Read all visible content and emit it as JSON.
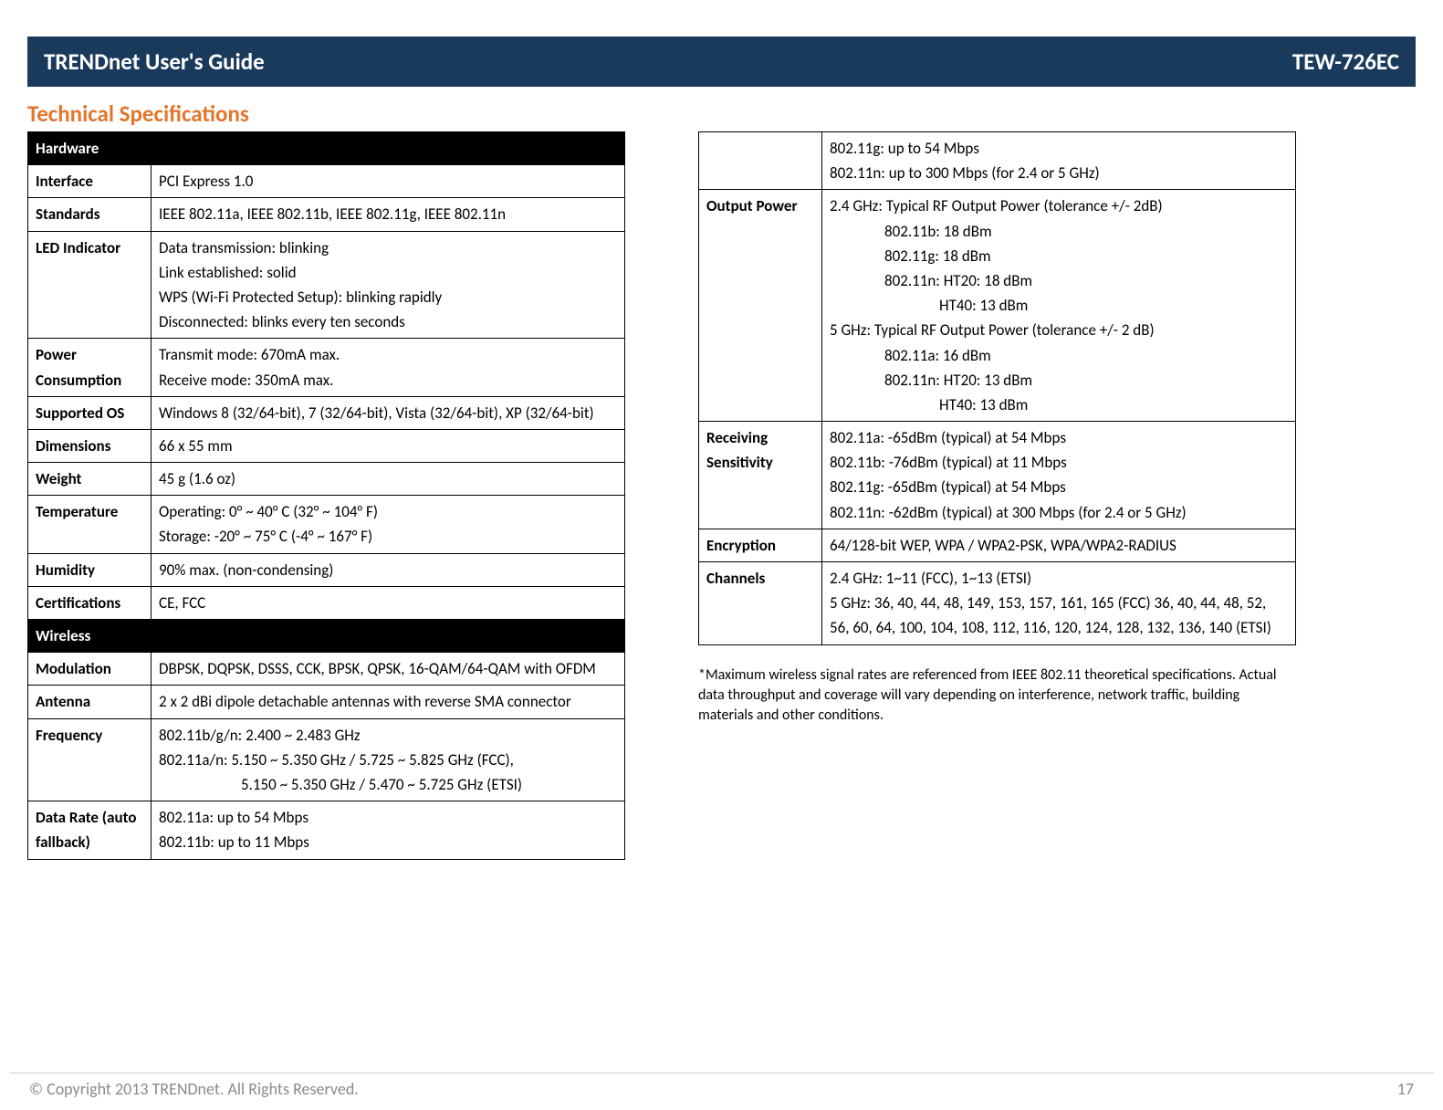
{
  "header": {
    "left": "TRENDnet User's Guide",
    "right": "TEW-726EC"
  },
  "section_title": "Technical Specifications",
  "table_left": {
    "sections": {
      "hardware": "Hardware",
      "wireless": "Wireless"
    },
    "rows": {
      "interface": {
        "label": "Interface",
        "value": "PCI Express 1.0"
      },
      "standards": {
        "label": "Standards",
        "value": "IEEE 802.11a, IEEE 802.11b, IEEE 802.11g, IEEE 802.11n"
      },
      "led": {
        "label": "LED Indicator",
        "lines": {
          "l1": "Data transmission: blinking",
          "l2": "Link established: solid",
          "l3": "WPS (Wi-Fi Protected Setup): blinking rapidly",
          "l4": "Disconnected: blinks every ten seconds"
        }
      },
      "power": {
        "label": "Power Consumption",
        "lines": {
          "l1": "Transmit mode: 670mA max.",
          "l2": "Receive mode: 350mA max."
        }
      },
      "os": {
        "label": "Supported OS",
        "value": "Windows 8 (32/64-bit), 7 (32/64-bit), Vista (32/64-bit), XP (32/64-bit)"
      },
      "dimensions": {
        "label": "Dimensions",
        "value": "66 x 55 mm"
      },
      "weight": {
        "label": "Weight",
        "value": "45 g (1.6 oz)"
      },
      "temperature": {
        "label": "Temperature",
        "lines": {
          "l1": "Operating: 0° ~ 40° C (32° ~ 104° F)",
          "l2": "Storage: -20° ~ 75° C (-4° ~ 167° F)"
        }
      },
      "humidity": {
        "label": "Humidity",
        "value": "90% max. (non-condensing)"
      },
      "certs": {
        "label": "Certifications",
        "value": "CE, FCC"
      },
      "modulation": {
        "label": "Modulation",
        "value": "DBPSK, DQPSK, DSSS, CCK, BPSK, QPSK, 16-QAM/64-QAM with OFDM"
      },
      "antenna": {
        "label": "Antenna",
        "value": "2 x 2 dBi dipole detachable antennas with reverse SMA connector"
      },
      "frequency": {
        "label": "Frequency",
        "lines": {
          "l1": "802.11b/g/n: 2.400 ~ 2.483 GHz",
          "l2": "802.11a/n: 5.150 ~ 5.350 GHz / 5.725 ~ 5.825 GHz (FCC),",
          "l3": "5.150 ~ 5.350 GHz / 5.470 ~ 5.725 GHz (ETSI)"
        }
      },
      "datarate": {
        "label": "Data Rate (auto fallback)",
        "lines": {
          "l1": "802.11a: up to 54 Mbps",
          "l2": "802.11b: up to 11 Mbps"
        }
      }
    }
  },
  "table_right": {
    "rows": {
      "datarate_cont": {
        "lines": {
          "l1": "802.11g: up to 54 Mbps",
          "l2": "802.11n: up to 300 Mbps (for 2.4 or 5 GHz)"
        }
      },
      "output": {
        "label": "Output Power",
        "lines": {
          "l1": "2.4 GHz: Typical RF Output Power (tolerance +/-  2dB)",
          "l2": "802.11b: 18 dBm",
          "l3": "802.11g: 18 dBm",
          "l4": "802.11n: HT20: 18 dBm",
          "l5": "HT40: 13 dBm",
          "l6": "5 GHz: Typical RF Output Power (tolerance +/- 2 dB)",
          "l7": "802.11a: 16 dBm",
          "l8": "802.11n: HT20: 13 dBm",
          "l9": "HT40: 13 dBm"
        }
      },
      "sensitivity": {
        "label": "Receiving Sensitivity",
        "lines": {
          "l1": "802.11a: -65dBm (typical) at 54 Mbps",
          "l2": "802.11b: -76dBm (typical) at 11 Mbps",
          "l3": "802.11g: -65dBm (typical) at 54 Mbps",
          "l4": "802.11n: -62dBm (typical) at 300 Mbps (for 2.4 or 5 GHz)"
        }
      },
      "encryption": {
        "label": "Encryption",
        "value": "64/128-bit WEP, WPA / WPA2-PSK, WPA/WPA2-RADIUS"
      },
      "channels": {
        "label": "Channels",
        "lines": {
          "l1": "2.4 GHz: 1~11 (FCC), 1~13 (ETSI)",
          "l2": "5 GHz: 36, 40, 44, 48, 149, 153, 157, 161, 165 (FCC) 36, 40, 44, 48, 52, 56, 60, 64, 100, 104, 108, 112, 116, 120, 124, 128, 132, 136, 140 (ETSI)"
        }
      }
    }
  },
  "footnote": "*Maximum wireless signal rates are referenced from IEEE 802.11 theoretical specifications. Actual data throughput and coverage will vary depending on interference, network traffic, building materials and other conditions.",
  "footer": {
    "copyright": "© Copyright 2013 TRENDnet. All Rights Reserved.",
    "page": "17"
  }
}
